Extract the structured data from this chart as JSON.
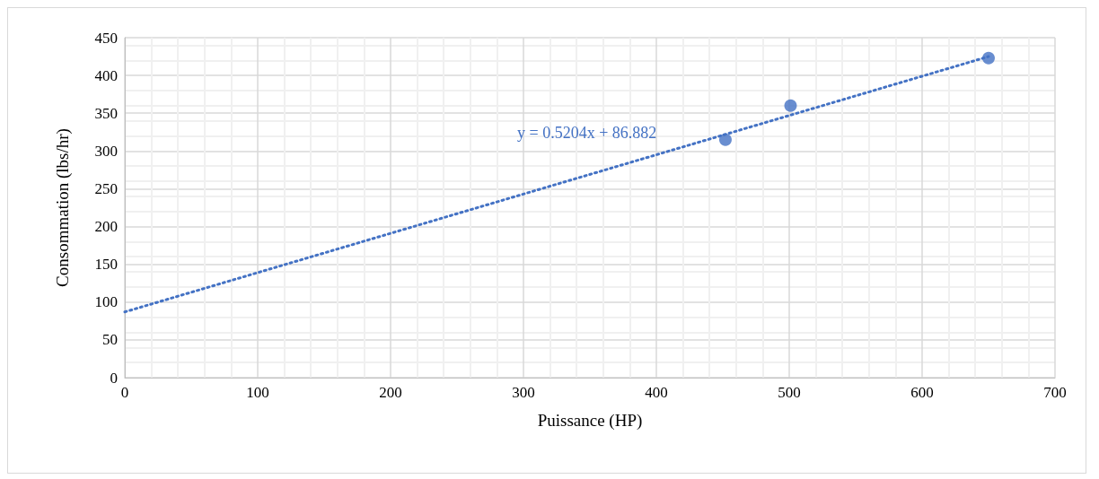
{
  "chart_data": {
    "type": "scatter",
    "xlabel": "Puissance (HP)",
    "ylabel": "Consommation (lbs/hr)",
    "series": [
      {
        "color": "#4472c4",
        "x": [
          452,
          501,
          650
        ],
        "values": [
          315,
          360,
          423
        ],
        "marker": "circle"
      },
      {
        "type": "line",
        "color": "#4472c4",
        "x": [
          0,
          650
        ],
        "values": [
          87,
          425
        ],
        "line_style": "dotted",
        "marker": "none"
      }
    ],
    "annotations": [
      "y = 0.5204x + 86.882"
    ],
    "xlim": [
      0,
      700
    ],
    "xticks": [
      0,
      100,
      200,
      300,
      400,
      500,
      600,
      700
    ],
    "ylim": [
      0,
      450
    ],
    "yticks": [
      0,
      50,
      100,
      150,
      200,
      250,
      300,
      350,
      400,
      450
    ],
    "grid": true
  }
}
